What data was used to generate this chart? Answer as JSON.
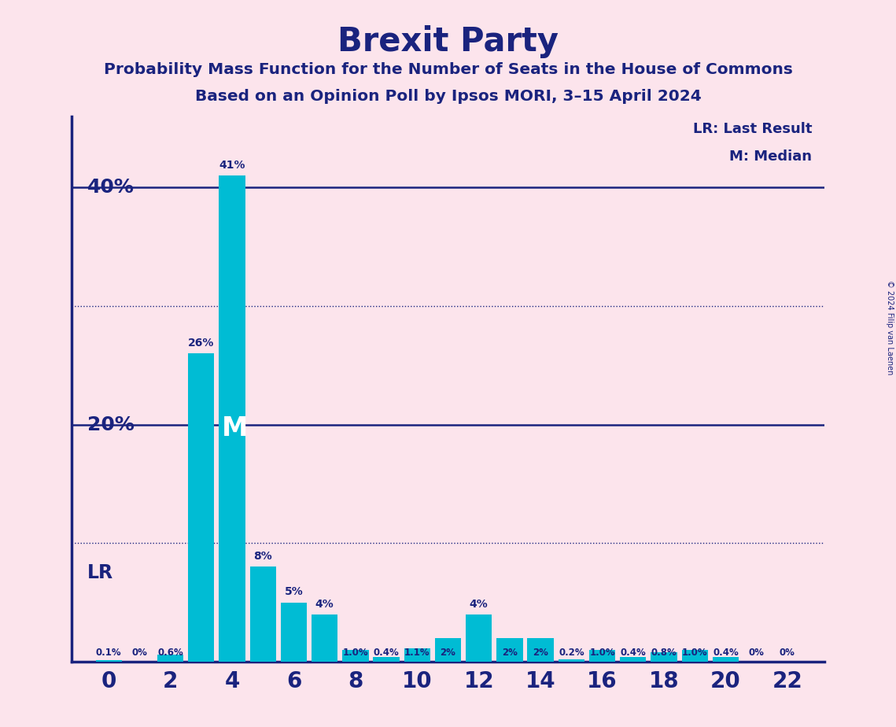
{
  "title": "Brexit Party",
  "subtitle1": "Probability Mass Function for the Number of Seats in the House of Commons",
  "subtitle2": "Based on an Opinion Poll by Ipsos MORI, 3–15 April 2024",
  "copyright": "© 2024 Filip van Laenen",
  "background_color": "#fce4ec",
  "bar_color": "#00bcd4",
  "title_color": "#1a237e",
  "axis_color": "#1a237e",
  "seats": [
    0,
    1,
    2,
    3,
    4,
    5,
    6,
    7,
    8,
    9,
    10,
    11,
    12,
    13,
    14,
    15,
    16,
    17,
    18,
    19,
    20,
    21,
    22
  ],
  "probabilities": [
    0.1,
    0.0,
    0.6,
    26.0,
    41.0,
    8.0,
    5.0,
    4.0,
    1.0,
    0.4,
    1.1,
    2.0,
    4.0,
    2.0,
    2.0,
    0.2,
    1.0,
    0.4,
    0.8,
    1.0,
    0.4,
    0.0,
    0.0
  ],
  "bar_labels": [
    "0.1%",
    "0%",
    "0.6%",
    "26%",
    "41%",
    "8%",
    "5%",
    "4%",
    "1.0%",
    "0.4%",
    "1.1%",
    "2%",
    "4%",
    "2%",
    "2%",
    "0.2%",
    "1.0%",
    "0.4%",
    "0.8%",
    "1.0%",
    "0.4%",
    "0%",
    "0%"
  ],
  "ylim": [
    0,
    46
  ],
  "solid_hlines": [
    20.0,
    40.0
  ],
  "dotted_hlines": [
    10.0,
    30.0
  ],
  "solid_hline_labels": [
    "20%",
    "40%"
  ],
  "lr_label": "LR",
  "median_seat": 4,
  "median_label": "M",
  "legend_lr": "LR: Last Result",
  "legend_m": "M: Median",
  "xticks": [
    0,
    2,
    4,
    6,
    8,
    10,
    12,
    14,
    16,
    18,
    20,
    22
  ]
}
